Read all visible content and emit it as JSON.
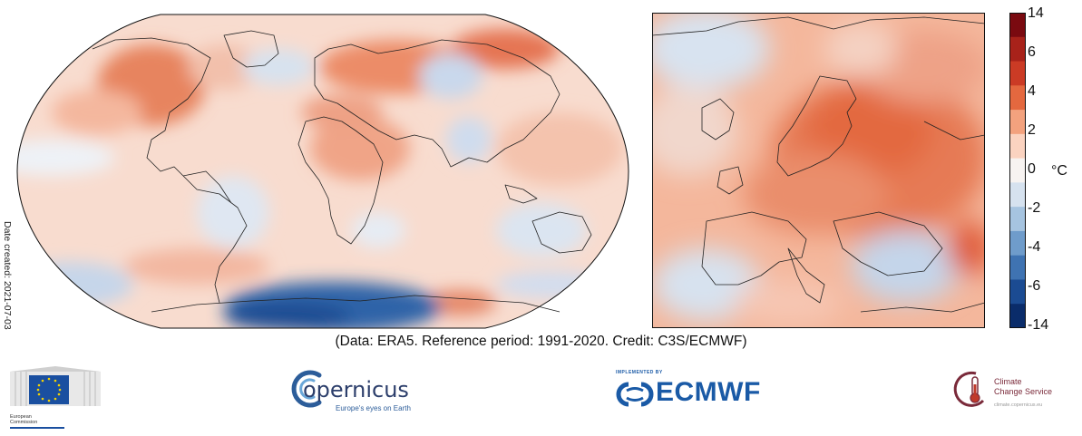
{
  "date_created": "Date created: 2021-07-03",
  "credit": "(Data: ERA5.  Reference period: 1991-2020.  Credit: C3S/ECMWF)",
  "colorbar": {
    "unit": "°C",
    "tick_labels": [
      "14",
      "6",
      "4",
      "2",
      "0",
      "-2",
      "-4",
      "-6",
      "-14"
    ],
    "colors": [
      "#7a0a10",
      "#a8221a",
      "#cb3b25",
      "#e4683f",
      "#f3a27e",
      "#fbd3c0",
      "#f7f3f1",
      "#d6e2ef",
      "#a6c4e0",
      "#6f9ccb",
      "#3f73b2",
      "#1b4b92",
      "#0a2c6a"
    ]
  },
  "logos": {
    "eu": {
      "line1": "European",
      "line2": "Commission"
    },
    "copernicus": {
      "name": "opernicus",
      "tagline": "Europe's eyes on Earth"
    },
    "ecmwf": {
      "implemented_by": "IMPLEMENTED BY",
      "name": "ECMWF"
    },
    "c3s": {
      "line1": "Climate",
      "line2": "Change Service",
      "sub": "climate.copernicus.eu"
    }
  }
}
